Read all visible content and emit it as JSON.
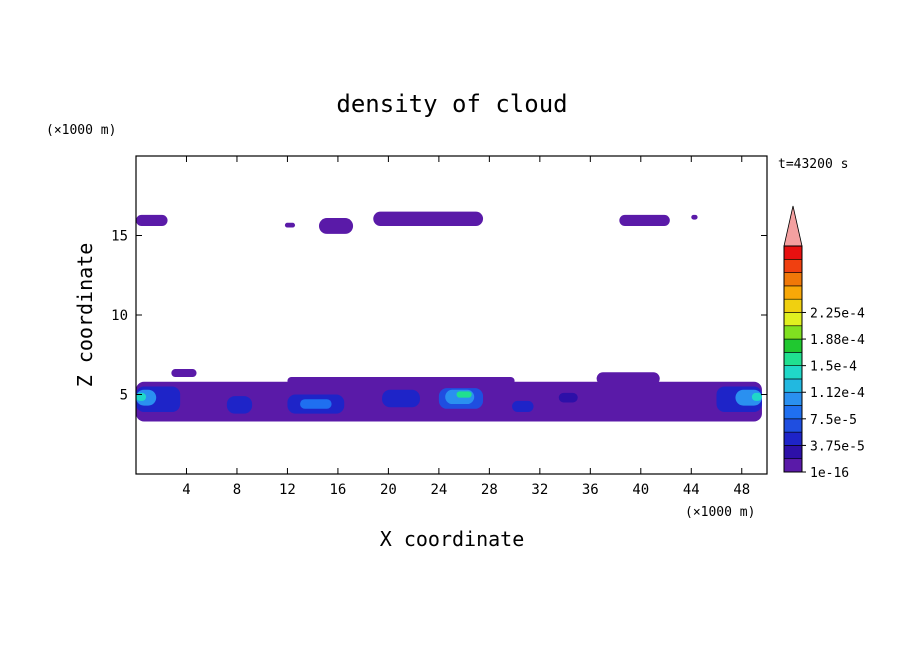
{
  "chart_data": {
    "type": "heatmap",
    "title": "density of cloud",
    "xlabel": "X coordinate",
    "ylabel": "Z coordinate",
    "x_unit": "(×1000 m)",
    "y_unit": "(×1000 m)",
    "time_label": "t=43200 s",
    "xlim": [
      0,
      50
    ],
    "ylim": [
      0,
      20
    ],
    "x_ticks": [
      4,
      8,
      12,
      16,
      20,
      24,
      28,
      32,
      36,
      40,
      44,
      48
    ],
    "y_ticks": [
      5,
      10,
      15
    ],
    "colorbar": {
      "labels": [
        "1e-16",
        "3.75e-5",
        "7.5e-5",
        "1.12e-4",
        "1.5e-4",
        "1.88e-4",
        "2.25e-4"
      ],
      "extend": "max",
      "colors": [
        "#5a1aa8",
        "#2d10a8",
        "#1e24c8",
        "#1f4ee0",
        "#1f6ff0",
        "#2a90f0",
        "#22b8e0",
        "#20d8c8",
        "#20e090",
        "#20c830",
        "#80e020",
        "#e0f020",
        "#f0d010",
        "#f8a808",
        "#f07808",
        "#f04010",
        "#e81010",
        "#f4a0a0"
      ]
    },
    "cloud_regions": [
      {
        "x0": 0,
        "x1": 49.6,
        "z0": 3.3,
        "z1": 5.8,
        "level": 0
      },
      {
        "x0": 2.8,
        "x1": 4.8,
        "z0": 6.1,
        "z1": 6.6,
        "level": 0
      },
      {
        "x0": 12,
        "x1": 30,
        "z0": 5.6,
        "z1": 6.1,
        "level": 0
      },
      {
        "x0": 36.5,
        "x1": 41.5,
        "z0": 5.6,
        "z1": 6.4,
        "level": 0
      },
      {
        "x0": 0,
        "x1": 2.5,
        "z0": 15.6,
        "z1": 16.3,
        "level": 0
      },
      {
        "x0": 11.8,
        "x1": 12.6,
        "z0": 15.5,
        "z1": 15.8,
        "level": 0
      },
      {
        "x0": 14.5,
        "x1": 17.2,
        "z0": 15.1,
        "z1": 16.1,
        "level": 0
      },
      {
        "x0": 18.8,
        "x1": 27.5,
        "z0": 15.6,
        "z1": 16.5,
        "level": 0
      },
      {
        "x0": 38.3,
        "x1": 42.3,
        "z0": 15.6,
        "z1": 16.3,
        "level": 0
      },
      {
        "x0": 44.0,
        "x1": 44.5,
        "z0": 16.0,
        "z1": 16.3,
        "level": 0
      },
      {
        "x0": 0,
        "x1": 3.5,
        "z0": 3.9,
        "z1": 5.5,
        "level": 2
      },
      {
        "x0": 0,
        "x1": 1.6,
        "z0": 4.3,
        "z1": 5.3,
        "level": 5
      },
      {
        "x0": 0,
        "x1": 0.8,
        "z0": 4.6,
        "z1": 5.1,
        "level": 7
      },
      {
        "x0": 7.2,
        "x1": 9.2,
        "z0": 3.8,
        "z1": 4.9,
        "level": 2
      },
      {
        "x0": 12,
        "x1": 16.5,
        "z0": 3.8,
        "z1": 5.0,
        "level": 2
      },
      {
        "x0": 13,
        "x1": 15.5,
        "z0": 4.1,
        "z1": 4.7,
        "level": 4
      },
      {
        "x0": 19.5,
        "x1": 22.5,
        "z0": 4.2,
        "z1": 5.3,
        "level": 2
      },
      {
        "x0": 24.0,
        "x1": 27.5,
        "z0": 4.1,
        "z1": 5.4,
        "level": 3
      },
      {
        "x0": 24.5,
        "x1": 26.8,
        "z0": 4.4,
        "z1": 5.3,
        "level": 5
      },
      {
        "x0": 25.4,
        "x1": 26.6,
        "z0": 4.8,
        "z1": 5.2,
        "level": 8
      },
      {
        "x0": 29.8,
        "x1": 31.5,
        "z0": 3.9,
        "z1": 4.6,
        "level": 2
      },
      {
        "x0": 33.5,
        "x1": 35.0,
        "z0": 4.5,
        "z1": 5.1,
        "level": 1
      },
      {
        "x0": 46.0,
        "x1": 49.6,
        "z0": 3.9,
        "z1": 5.5,
        "level": 2
      },
      {
        "x0": 47.5,
        "x1": 49.6,
        "z0": 4.3,
        "z1": 5.3,
        "level": 5
      },
      {
        "x0": 48.8,
        "x1": 49.6,
        "z0": 4.6,
        "z1": 5.1,
        "level": 7
      }
    ]
  }
}
